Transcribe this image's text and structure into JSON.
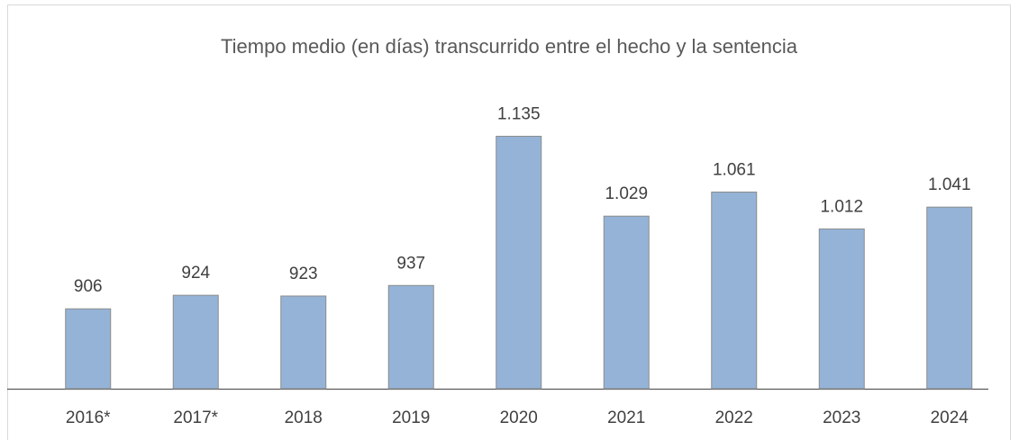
{
  "chart_data": {
    "type": "bar",
    "title": "Tiempo medio (en días) transcurrido entre el hecho y la sentencia",
    "categories": [
      "2016*",
      "2017*",
      "2018",
      "2019",
      "2020",
      "2021",
      "2022",
      "2023",
      "2024"
    ],
    "values": [
      906,
      924,
      923,
      937,
      1135,
      1029,
      1061,
      1012,
      1041
    ],
    "value_labels": [
      "906",
      "924",
      "923",
      "937",
      "1.135",
      "1.029",
      "1.061",
      "1.012",
      "1.041"
    ],
    "color": "#95b3d7",
    "ylim": [
      800,
      1200
    ]
  }
}
